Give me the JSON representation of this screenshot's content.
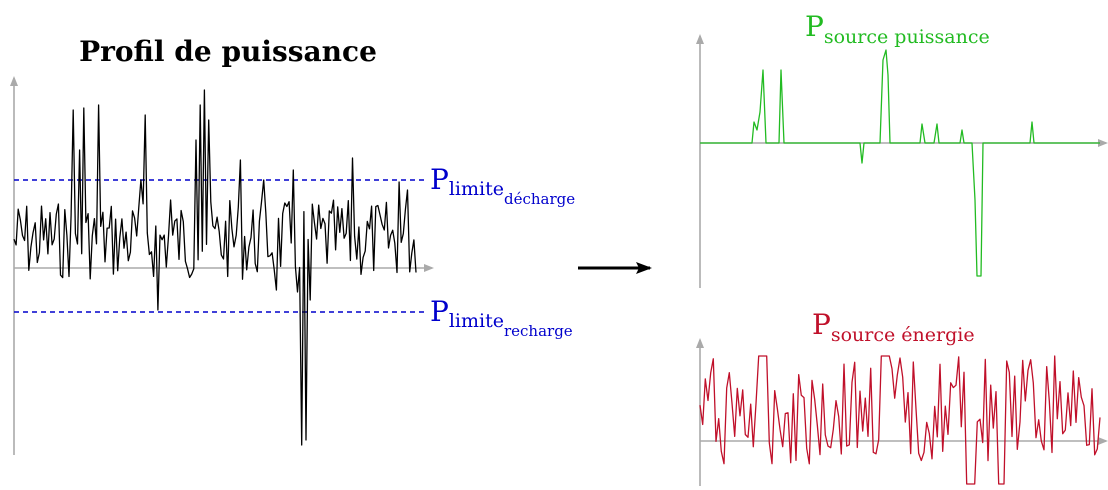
{
  "left_panel": {
    "title": "Profil de puissance",
    "limit_discharge": {
      "main": "P",
      "sub": "limite",
      "subsub": "décharge"
    },
    "limit_recharge": {
      "main": "P",
      "sub": "limite",
      "subsub": "recharge"
    }
  },
  "right_top": {
    "label": {
      "main": "P",
      "sub": "source puissance"
    }
  },
  "right_bottom": {
    "label": {
      "main": "P",
      "sub": "source énergie"
    }
  },
  "colors": {
    "profile": "#000000",
    "limits": "#0000cc",
    "power_source": "#22bb22",
    "energy_source": "#c0102a",
    "axes": "#aaaaaa"
  },
  "icons": {
    "arrow": "right-arrow-icon"
  }
}
